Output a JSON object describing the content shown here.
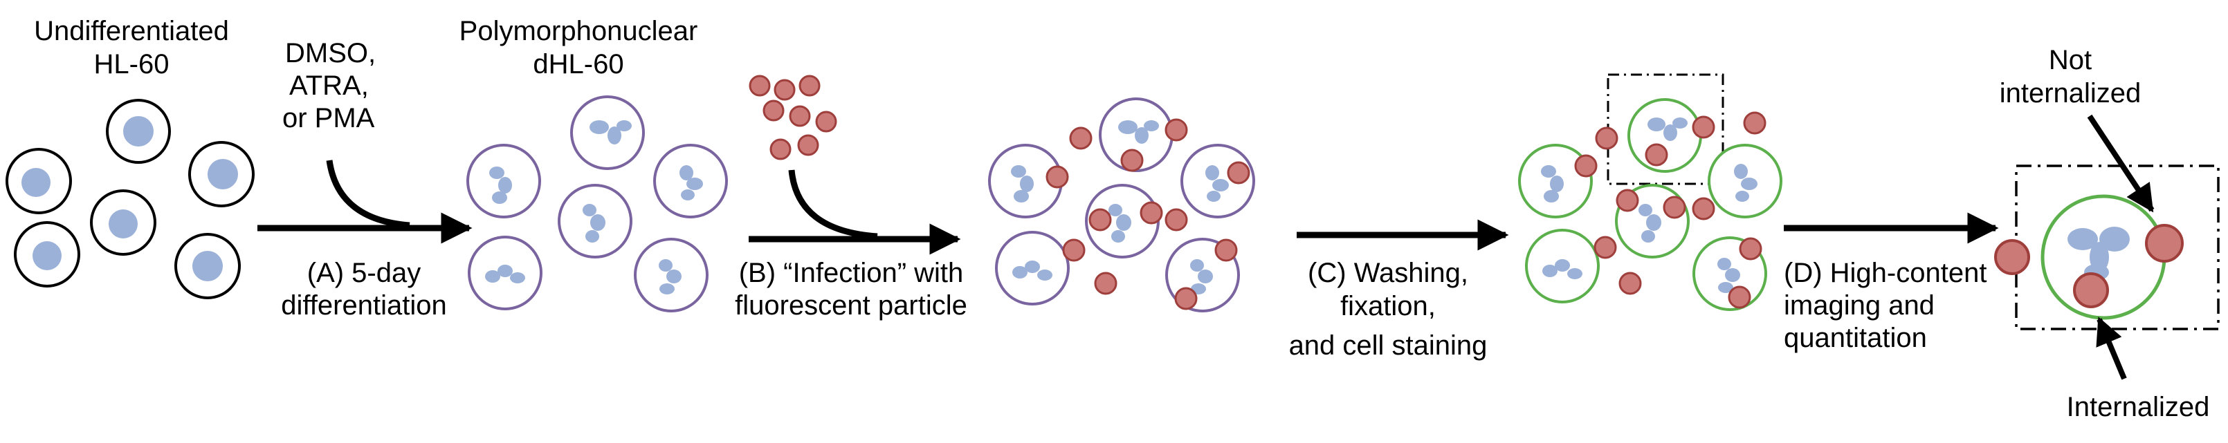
{
  "stage_labels": {
    "undiff_l1": "Undifferentiated",
    "undiff_l2": "HL-60",
    "poly_l1": "Polymorphonuclear",
    "poly_l2": "dHL-60",
    "inducers_l1": "DMSO,",
    "inducers_l2": "ATRA,",
    "inducers_l3": "or PMA"
  },
  "steps": {
    "a_l1": "(A) 5-day",
    "a_l2": "differentiation",
    "b_l1": "(B) “Infection” with",
    "b_l2": "fluorescent particle",
    "c_l1": "(C) Washing,",
    "c_l2": "fixation,",
    "c_l3": "and cell staining",
    "d_l1": "(D) High-content",
    "d_l2": "imaging  and",
    "d_l3": "quantitation"
  },
  "callouts": {
    "not_l1": "Not",
    "not_l2": "internalized",
    "internalized": "Internalized"
  },
  "colors": {
    "nucleus": "#9bb1d8",
    "undiff_membrane": "#000000",
    "dhl60_membrane": "#7a64a0",
    "stained_membrane": "#5cb04c",
    "particle_fill": "#cc7a78",
    "particle_stroke": "#9e3f3c",
    "arrow": "#000000"
  },
  "icons": {
    "process_arrow": "right-arrow",
    "inducer_arrow": "curved-arrow",
    "zoom_box": "dash-dot-rectangle"
  }
}
